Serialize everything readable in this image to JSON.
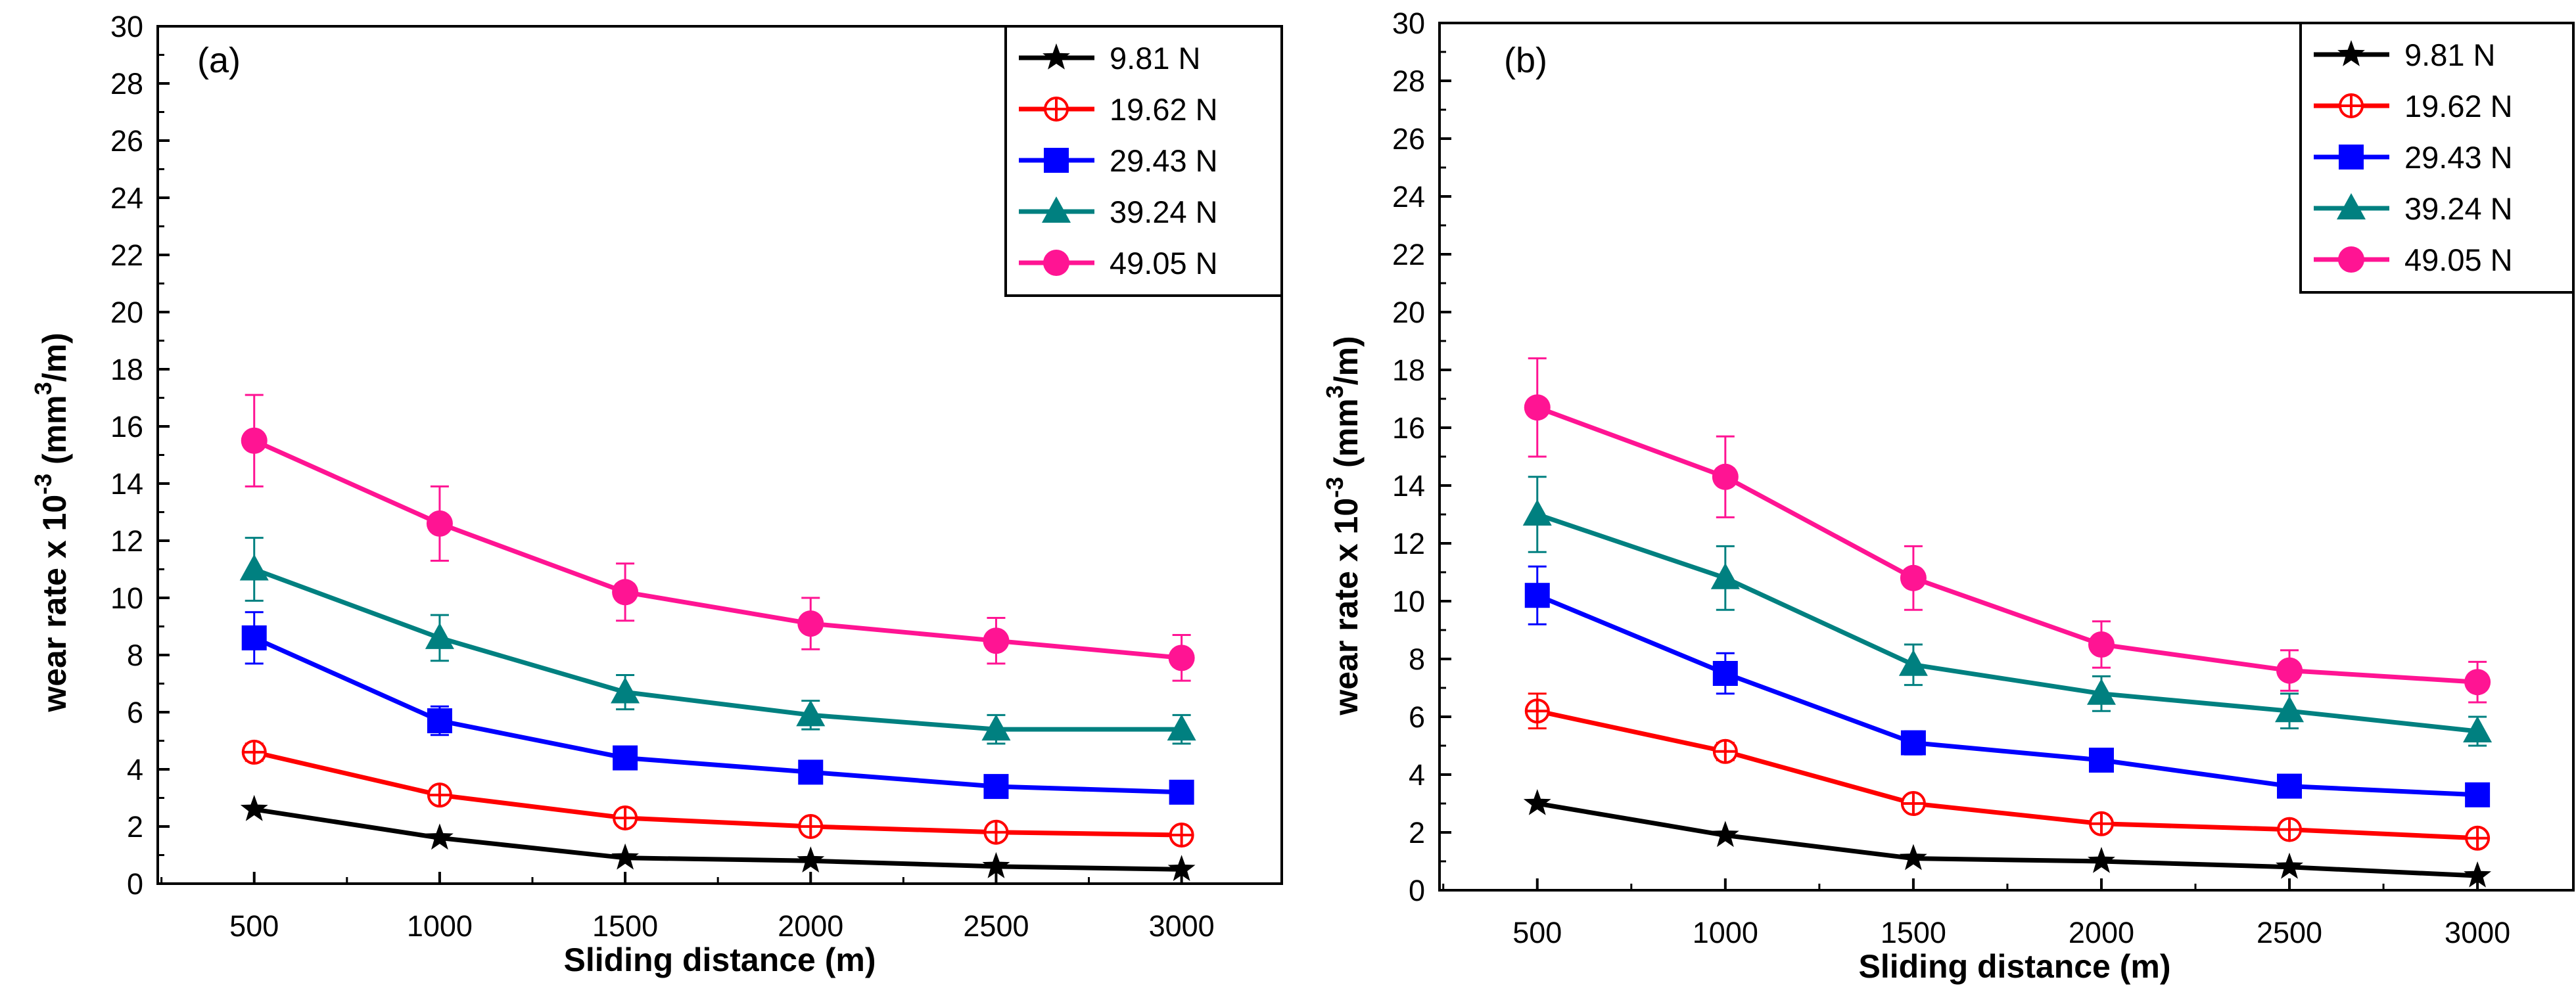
{
  "chart_data": [
    {
      "type": "line",
      "panel_label": "(a)",
      "xlabel": "Sliding distance (m)",
      "ylabel_main": "wear rate x 10",
      "ylabel_exp1": "-3",
      "ylabel_unit_pre": " (mm",
      "ylabel_exp2": "3",
      "ylabel_unit_post": "/m)",
      "x": [
        500,
        1000,
        1500,
        2000,
        2500,
        3000
      ],
      "ylim": [
        0,
        30
      ],
      "yticks": [
        0,
        2,
        4,
        6,
        8,
        10,
        12,
        14,
        16,
        18,
        20,
        22,
        24,
        26,
        28,
        30
      ],
      "legend_position": "top-right",
      "series": [
        {
          "name": "9.81 N",
          "color": "#000000",
          "marker": "star",
          "values": [
            2.6,
            1.6,
            0.9,
            0.8,
            0.6,
            0.5
          ],
          "errors": [
            0.15,
            0.15,
            0.1,
            0.1,
            0.1,
            0.1
          ]
        },
        {
          "name": "19.62 N",
          "color": "#ff0000",
          "marker": "circle-plus",
          "values": [
            4.6,
            3.1,
            2.3,
            2.0,
            1.8,
            1.7
          ],
          "errors": [
            0.3,
            0.25,
            0.2,
            0.15,
            0.15,
            0.15
          ]
        },
        {
          "name": "29.43 N",
          "color": "#0000ff",
          "marker": "square",
          "values": [
            8.6,
            5.7,
            4.4,
            3.9,
            3.4,
            3.2
          ],
          "errors": [
            0.9,
            0.5,
            0.35,
            0.3,
            0.3,
            0.25
          ]
        },
        {
          "name": "39.24 N",
          "color": "#008080",
          "marker": "triangle",
          "values": [
            11.0,
            8.6,
            6.7,
            5.9,
            5.4,
            5.4
          ],
          "errors": [
            1.1,
            0.8,
            0.6,
            0.5,
            0.5,
            0.5
          ]
        },
        {
          "name": "49.05 N",
          "color": "#ff1493",
          "marker": "dot",
          "values": [
            15.5,
            12.6,
            10.2,
            9.1,
            8.5,
            7.9
          ],
          "errors": [
            1.6,
            1.3,
            1.0,
            0.9,
            0.8,
            0.8
          ]
        }
      ]
    },
    {
      "type": "line",
      "panel_label": "(b)",
      "xlabel": "Sliding distance (m)",
      "ylabel_main": "wear rate x 10",
      "ylabel_exp1": "-3",
      "ylabel_unit_pre": " (mm",
      "ylabel_exp2": "3",
      "ylabel_unit_post": "/m)",
      "x": [
        500,
        1000,
        1500,
        2000,
        2500,
        3000
      ],
      "ylim": [
        0,
        30
      ],
      "yticks": [
        0,
        2,
        4,
        6,
        8,
        10,
        12,
        14,
        16,
        18,
        20,
        22,
        24,
        26,
        28,
        30
      ],
      "legend_position": "top-right",
      "series": [
        {
          "name": "9.81 N",
          "color": "#000000",
          "marker": "star",
          "values": [
            3.0,
            1.9,
            1.1,
            1.0,
            0.8,
            0.5
          ],
          "errors": [
            0.15,
            0.15,
            0.1,
            0.1,
            0.1,
            0.1
          ]
        },
        {
          "name": "19.62 N",
          "color": "#ff0000",
          "marker": "circle-plus",
          "values": [
            6.2,
            4.8,
            3.0,
            2.3,
            2.1,
            1.8
          ],
          "errors": [
            0.6,
            0.3,
            0.25,
            0.2,
            0.2,
            0.15
          ]
        },
        {
          "name": "29.43 N",
          "color": "#0000ff",
          "marker": "square",
          "values": [
            10.2,
            7.5,
            5.1,
            4.5,
            3.6,
            3.3
          ],
          "errors": [
            1.0,
            0.7,
            0.4,
            0.35,
            0.3,
            0.3
          ]
        },
        {
          "name": "39.24 N",
          "color": "#008080",
          "marker": "triangle",
          "values": [
            13.0,
            10.8,
            7.8,
            6.8,
            6.2,
            5.5
          ],
          "errors": [
            1.3,
            1.1,
            0.7,
            0.6,
            0.6,
            0.5
          ]
        },
        {
          "name": "49.05 N",
          "color": "#ff1493",
          "marker": "dot",
          "values": [
            16.7,
            14.3,
            10.8,
            8.5,
            7.6,
            7.2
          ],
          "errors": [
            1.7,
            1.4,
            1.1,
            0.8,
            0.7,
            0.7
          ]
        }
      ]
    }
  ]
}
